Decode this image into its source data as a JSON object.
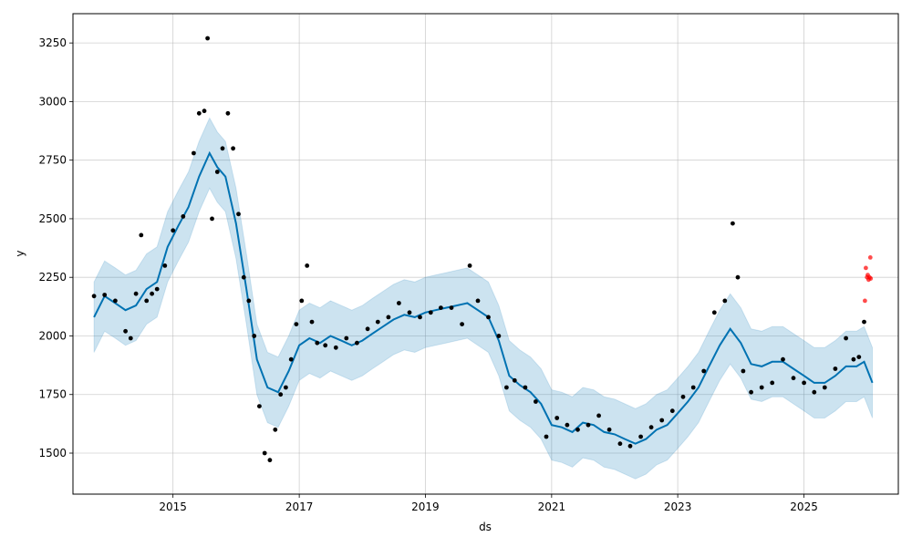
{
  "chart_data": {
    "type": "line",
    "title": "",
    "xlabel": "ds",
    "ylabel": "y",
    "x_axis_type": "date",
    "xlim": [
      "2013-06-01",
      "2026-07-01"
    ],
    "ylim": [
      1325,
      3375
    ],
    "x_ticks": [
      "2015-01-01",
      "2017-01-01",
      "2019-01-01",
      "2021-01-01",
      "2023-01-01",
      "2025-01-01"
    ],
    "x_tick_labels": [
      "2015",
      "2017",
      "2019",
      "2021",
      "2023",
      "2025"
    ],
    "y_ticks": [
      1500,
      1750,
      2000,
      2250,
      2500,
      2750,
      3000,
      3250
    ],
    "grid": true,
    "legend": "none",
    "colors": {
      "observed": "#000000",
      "forecast": "#0072B2",
      "uncertainty": "#0072B2",
      "uncertainty_opacity": 0.2,
      "test_points": "#FF0000"
    },
    "series": [
      {
        "kind": "observed",
        "points": [
          [
            "2013-10-01",
            2170
          ],
          [
            "2013-12-01",
            2175
          ],
          [
            "2014-02-01",
            2150
          ],
          [
            "2014-04-01",
            2020
          ],
          [
            "2014-05-01",
            1990
          ],
          [
            "2014-06-01",
            2180
          ],
          [
            "2014-07-01",
            2430
          ],
          [
            "2014-08-01",
            2150
          ],
          [
            "2014-09-01",
            2180
          ],
          [
            "2014-10-01",
            2200
          ],
          [
            "2014-11-15",
            2300
          ],
          [
            "2015-01-01",
            2450
          ],
          [
            "2015-03-01",
            2510
          ],
          [
            "2015-05-01",
            2780
          ],
          [
            "2015-06-01",
            2950
          ],
          [
            "2015-07-01",
            2960
          ],
          [
            "2015-07-20",
            3270
          ],
          [
            "2015-08-15",
            2500
          ],
          [
            "2015-09-15",
            2700
          ],
          [
            "2015-10-15",
            2800
          ],
          [
            "2015-11-15",
            2950
          ],
          [
            "2015-12-15",
            2800
          ],
          [
            "2016-01-15",
            2520
          ],
          [
            "2016-02-15",
            2250
          ],
          [
            "2016-03-15",
            2150
          ],
          [
            "2016-04-15",
            2000
          ],
          [
            "2016-05-15",
            1700
          ],
          [
            "2016-06-15",
            1500
          ],
          [
            "2016-07-15",
            1470
          ],
          [
            "2016-08-15",
            1600
          ],
          [
            "2016-09-15",
            1750
          ],
          [
            "2016-10-15",
            1780
          ],
          [
            "2016-11-15",
            1900
          ],
          [
            "2016-12-15",
            2050
          ],
          [
            "2017-01-15",
            2150
          ],
          [
            "2017-02-15",
            2300
          ],
          [
            "2017-03-15",
            2060
          ],
          [
            "2017-04-15",
            1970
          ],
          [
            "2017-06-01",
            1960
          ],
          [
            "2017-08-01",
            1950
          ],
          [
            "2017-10-01",
            1990
          ],
          [
            "2017-12-01",
            1970
          ],
          [
            "2018-02-01",
            2030
          ],
          [
            "2018-04-01",
            2060
          ],
          [
            "2018-06-01",
            2080
          ],
          [
            "2018-08-01",
            2140
          ],
          [
            "2018-10-01",
            2100
          ],
          [
            "2018-12-01",
            2080
          ],
          [
            "2019-02-01",
            2100
          ],
          [
            "2019-04-01",
            2120
          ],
          [
            "2019-06-01",
            2120
          ],
          [
            "2019-08-01",
            2050
          ],
          [
            "2019-09-15",
            2300
          ],
          [
            "2019-11-01",
            2150
          ],
          [
            "2020-01-01",
            2080
          ],
          [
            "2020-03-01",
            2000
          ],
          [
            "2020-04-15",
            1780
          ],
          [
            "2020-06-01",
            1810
          ],
          [
            "2020-08-01",
            1780
          ],
          [
            "2020-10-01",
            1720
          ],
          [
            "2020-12-01",
            1570
          ],
          [
            "2021-02-01",
            1650
          ],
          [
            "2021-04-01",
            1620
          ],
          [
            "2021-06-01",
            1600
          ],
          [
            "2021-08-01",
            1620
          ],
          [
            "2021-10-01",
            1660
          ],
          [
            "2021-12-01",
            1600
          ],
          [
            "2022-02-01",
            1540
          ],
          [
            "2022-04-01",
            1530
          ],
          [
            "2022-06-01",
            1570
          ],
          [
            "2022-08-01",
            1610
          ],
          [
            "2022-10-01",
            1640
          ],
          [
            "2022-12-01",
            1680
          ],
          [
            "2023-02-01",
            1740
          ],
          [
            "2023-04-01",
            1780
          ],
          [
            "2023-06-01",
            1850
          ],
          [
            "2023-08-01",
            2100
          ],
          [
            "2023-10-01",
            2150
          ],
          [
            "2023-11-15",
            2480
          ],
          [
            "2023-12-15",
            2250
          ],
          [
            "2024-01-15",
            1850
          ],
          [
            "2024-03-01",
            1760
          ],
          [
            "2024-05-01",
            1780
          ],
          [
            "2024-07-01",
            1800
          ],
          [
            "2024-09-01",
            1900
          ],
          [
            "2024-11-01",
            1820
          ],
          [
            "2025-01-01",
            1800
          ],
          [
            "2025-03-01",
            1760
          ],
          [
            "2025-05-01",
            1780
          ],
          [
            "2025-07-01",
            1860
          ],
          [
            "2025-09-01",
            1990
          ],
          [
            "2025-10-15",
            1900
          ],
          [
            "2025-11-15",
            1910
          ],
          [
            "2025-12-15",
            2060
          ]
        ]
      },
      {
        "kind": "forecast",
        "points": [
          [
            "2013-10-01",
            2080
          ],
          [
            "2013-12-01",
            2170
          ],
          [
            "2014-02-01",
            2140
          ],
          [
            "2014-04-01",
            2110
          ],
          [
            "2014-06-01",
            2130
          ],
          [
            "2014-08-01",
            2200
          ],
          [
            "2014-10-01",
            2230
          ],
          [
            "2014-12-01",
            2380
          ],
          [
            "2015-02-01",
            2470
          ],
          [
            "2015-04-01",
            2550
          ],
          [
            "2015-06-01",
            2680
          ],
          [
            "2015-08-01",
            2780
          ],
          [
            "2015-09-15",
            2720
          ],
          [
            "2015-11-01",
            2680
          ],
          [
            "2016-01-01",
            2480
          ],
          [
            "2016-03-01",
            2200
          ],
          [
            "2016-05-01",
            1900
          ],
          [
            "2016-07-01",
            1780
          ],
          [
            "2016-09-01",
            1760
          ],
          [
            "2016-11-01",
            1850
          ],
          [
            "2017-01-01",
            1960
          ],
          [
            "2017-03-01",
            1990
          ],
          [
            "2017-05-01",
            1970
          ],
          [
            "2017-07-01",
            2000
          ],
          [
            "2017-09-01",
            1980
          ],
          [
            "2017-11-01",
            1960
          ],
          [
            "2018-01-01",
            1980
          ],
          [
            "2018-03-01",
            2010
          ],
          [
            "2018-05-01",
            2040
          ],
          [
            "2018-07-01",
            2070
          ],
          [
            "2018-09-01",
            2090
          ],
          [
            "2018-11-01",
            2080
          ],
          [
            "2019-01-01",
            2100
          ],
          [
            "2019-03-01",
            2110
          ],
          [
            "2019-05-01",
            2120
          ],
          [
            "2019-07-01",
            2130
          ],
          [
            "2019-09-01",
            2140
          ],
          [
            "2019-11-01",
            2110
          ],
          [
            "2020-01-01",
            2080
          ],
          [
            "2020-03-01",
            1980
          ],
          [
            "2020-05-01",
            1830
          ],
          [
            "2020-07-01",
            1790
          ],
          [
            "2020-09-01",
            1760
          ],
          [
            "2020-11-01",
            1710
          ],
          [
            "2021-01-01",
            1620
          ],
          [
            "2021-03-01",
            1610
          ],
          [
            "2021-05-01",
            1590
          ],
          [
            "2021-07-01",
            1630
          ],
          [
            "2021-09-01",
            1620
          ],
          [
            "2021-11-01",
            1590
          ],
          [
            "2022-01-01",
            1580
          ],
          [
            "2022-03-01",
            1560
          ],
          [
            "2022-05-01",
            1540
          ],
          [
            "2022-07-01",
            1560
          ],
          [
            "2022-09-01",
            1600
          ],
          [
            "2022-11-01",
            1620
          ],
          [
            "2023-01-01",
            1670
          ],
          [
            "2023-03-01",
            1720
          ],
          [
            "2023-05-01",
            1780
          ],
          [
            "2023-07-01",
            1870
          ],
          [
            "2023-09-01",
            1960
          ],
          [
            "2023-11-01",
            2030
          ],
          [
            "2024-01-01",
            1970
          ],
          [
            "2024-03-01",
            1880
          ],
          [
            "2024-05-01",
            1870
          ],
          [
            "2024-07-01",
            1890
          ],
          [
            "2024-09-01",
            1890
          ],
          [
            "2024-11-01",
            1860
          ],
          [
            "2025-01-01",
            1830
          ],
          [
            "2025-03-01",
            1800
          ],
          [
            "2025-05-01",
            1800
          ],
          [
            "2025-07-01",
            1830
          ],
          [
            "2025-09-01",
            1870
          ],
          [
            "2025-11-01",
            1870
          ],
          [
            "2025-12-15",
            1890
          ],
          [
            "2026-02-01",
            1800
          ]
        ]
      },
      {
        "kind": "test",
        "points": [
          [
            "2025-12-20",
            2150
          ],
          [
            "2025-12-25",
            2290
          ],
          [
            "2026-01-01",
            2250
          ],
          [
            "2026-01-05",
            2260
          ],
          [
            "2026-01-10",
            2240
          ],
          [
            "2026-01-15",
            2250
          ],
          [
            "2026-01-20",
            2335
          ],
          [
            "2026-01-22",
            2245
          ]
        ]
      }
    ],
    "uncertainty_halfwidth": 150
  }
}
